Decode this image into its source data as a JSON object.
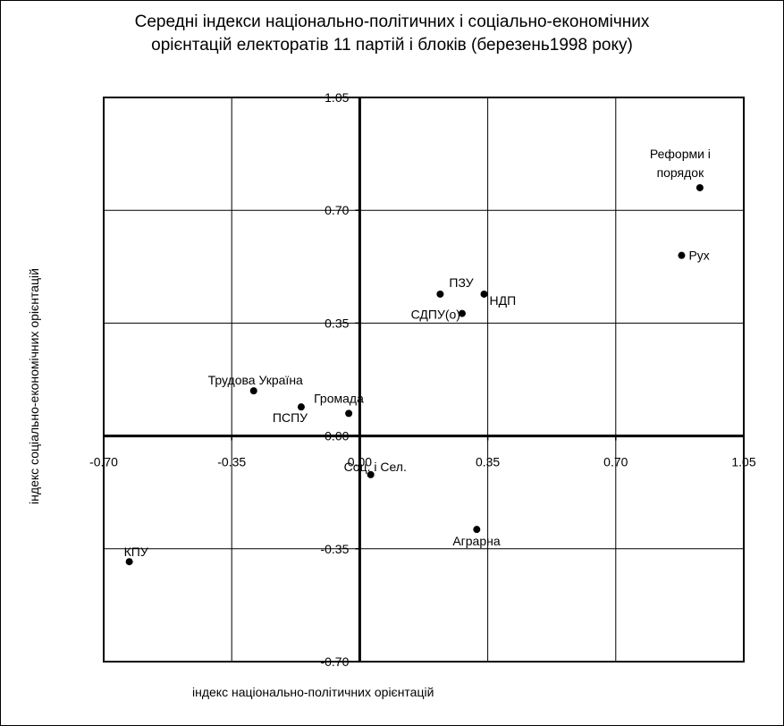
{
  "chart_data": {
    "type": "scatter",
    "title": [
      "Середні індекси національно-політичних і соціально-економічних",
      "орієнтацій електоратів 11 партій і блоків (березень1998 року)"
    ],
    "xlabel": "індекс національно-політичних орієнтацій",
    "ylabel": "індекс соціально-економічних орієнтацій",
    "xlim": [
      -0.7,
      1.05
    ],
    "ylim": [
      -0.7,
      1.05
    ],
    "x_ticks": [
      "-0.70",
      "-0.35",
      "0.00",
      "0.35",
      "0.70",
      "1.05"
    ],
    "y_ticks": [
      "-0.70",
      "-0.35",
      "0.00",
      "0.35",
      "0.70",
      "1.05"
    ],
    "grid": true,
    "points": [
      {
        "label": "Реформи і порядок",
        "x": 0.93,
        "y": 0.77
      },
      {
        "label": "Рух",
        "x": 0.88,
        "y": 0.56
      },
      {
        "label": "ПЗУ",
        "x": 0.22,
        "y": 0.44
      },
      {
        "label": "НДП",
        "x": 0.34,
        "y": 0.44
      },
      {
        "label": "СДПУ(о)",
        "x": 0.28,
        "y": 0.38
      },
      {
        "label": "Трудова Україна",
        "x": -0.29,
        "y": 0.14
      },
      {
        "label": "Громада",
        "x": -0.03,
        "y": 0.07
      },
      {
        "label": "ПСПУ",
        "x": -0.16,
        "y": 0.09
      },
      {
        "label": "Соц. і Сел.",
        "x": 0.03,
        "y": -0.12
      },
      {
        "label": "Аграрна",
        "x": 0.32,
        "y": -0.29
      },
      {
        "label": "КПУ",
        "x": -0.63,
        "y": -0.39
      }
    ]
  }
}
